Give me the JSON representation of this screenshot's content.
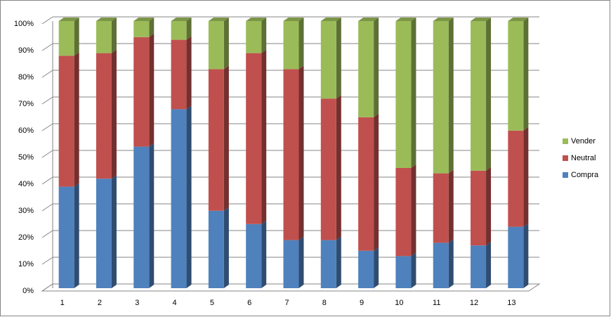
{
  "chart_data": {
    "type": "bar",
    "stacked": true,
    "categories": [
      "1",
      "2",
      "3",
      "4",
      "5",
      "6",
      "7",
      "8",
      "9",
      "10",
      "11",
      "12",
      "13"
    ],
    "series": [
      {
        "name": "Compra",
        "color": "#4f81bd",
        "values": [
          38,
          41,
          53,
          67,
          29,
          24,
          18,
          18,
          14,
          12,
          17,
          16,
          23
        ]
      },
      {
        "name": "Neutral",
        "color": "#c0504d",
        "values": [
          49,
          47,
          41,
          26,
          53,
          64,
          64,
          53,
          50,
          33,
          26,
          28,
          36
        ]
      },
      {
        "name": "Vender",
        "color": "#9bbb59",
        "values": [
          13,
          12,
          6,
          7,
          18,
          12,
          18,
          29,
          36,
          55,
          57,
          56,
          41
        ]
      }
    ],
    "ylim": [
      0,
      100
    ],
    "yticks": [
      {
        "value": 0,
        "label": "0%"
      },
      {
        "value": 10,
        "label": "10%"
      },
      {
        "value": 20,
        "label": "20%"
      },
      {
        "value": 30,
        "label": "30%"
      },
      {
        "value": 40,
        "label": "40%"
      },
      {
        "value": 50,
        "label": "50%"
      },
      {
        "value": 60,
        "label": "60%"
      },
      {
        "value": 70,
        "label": "70%"
      },
      {
        "value": 80,
        "label": "80%"
      },
      {
        "value": 90,
        "label": "90%"
      },
      {
        "value": 100,
        "label": "100%"
      }
    ],
    "grid": true,
    "legend": "right"
  }
}
